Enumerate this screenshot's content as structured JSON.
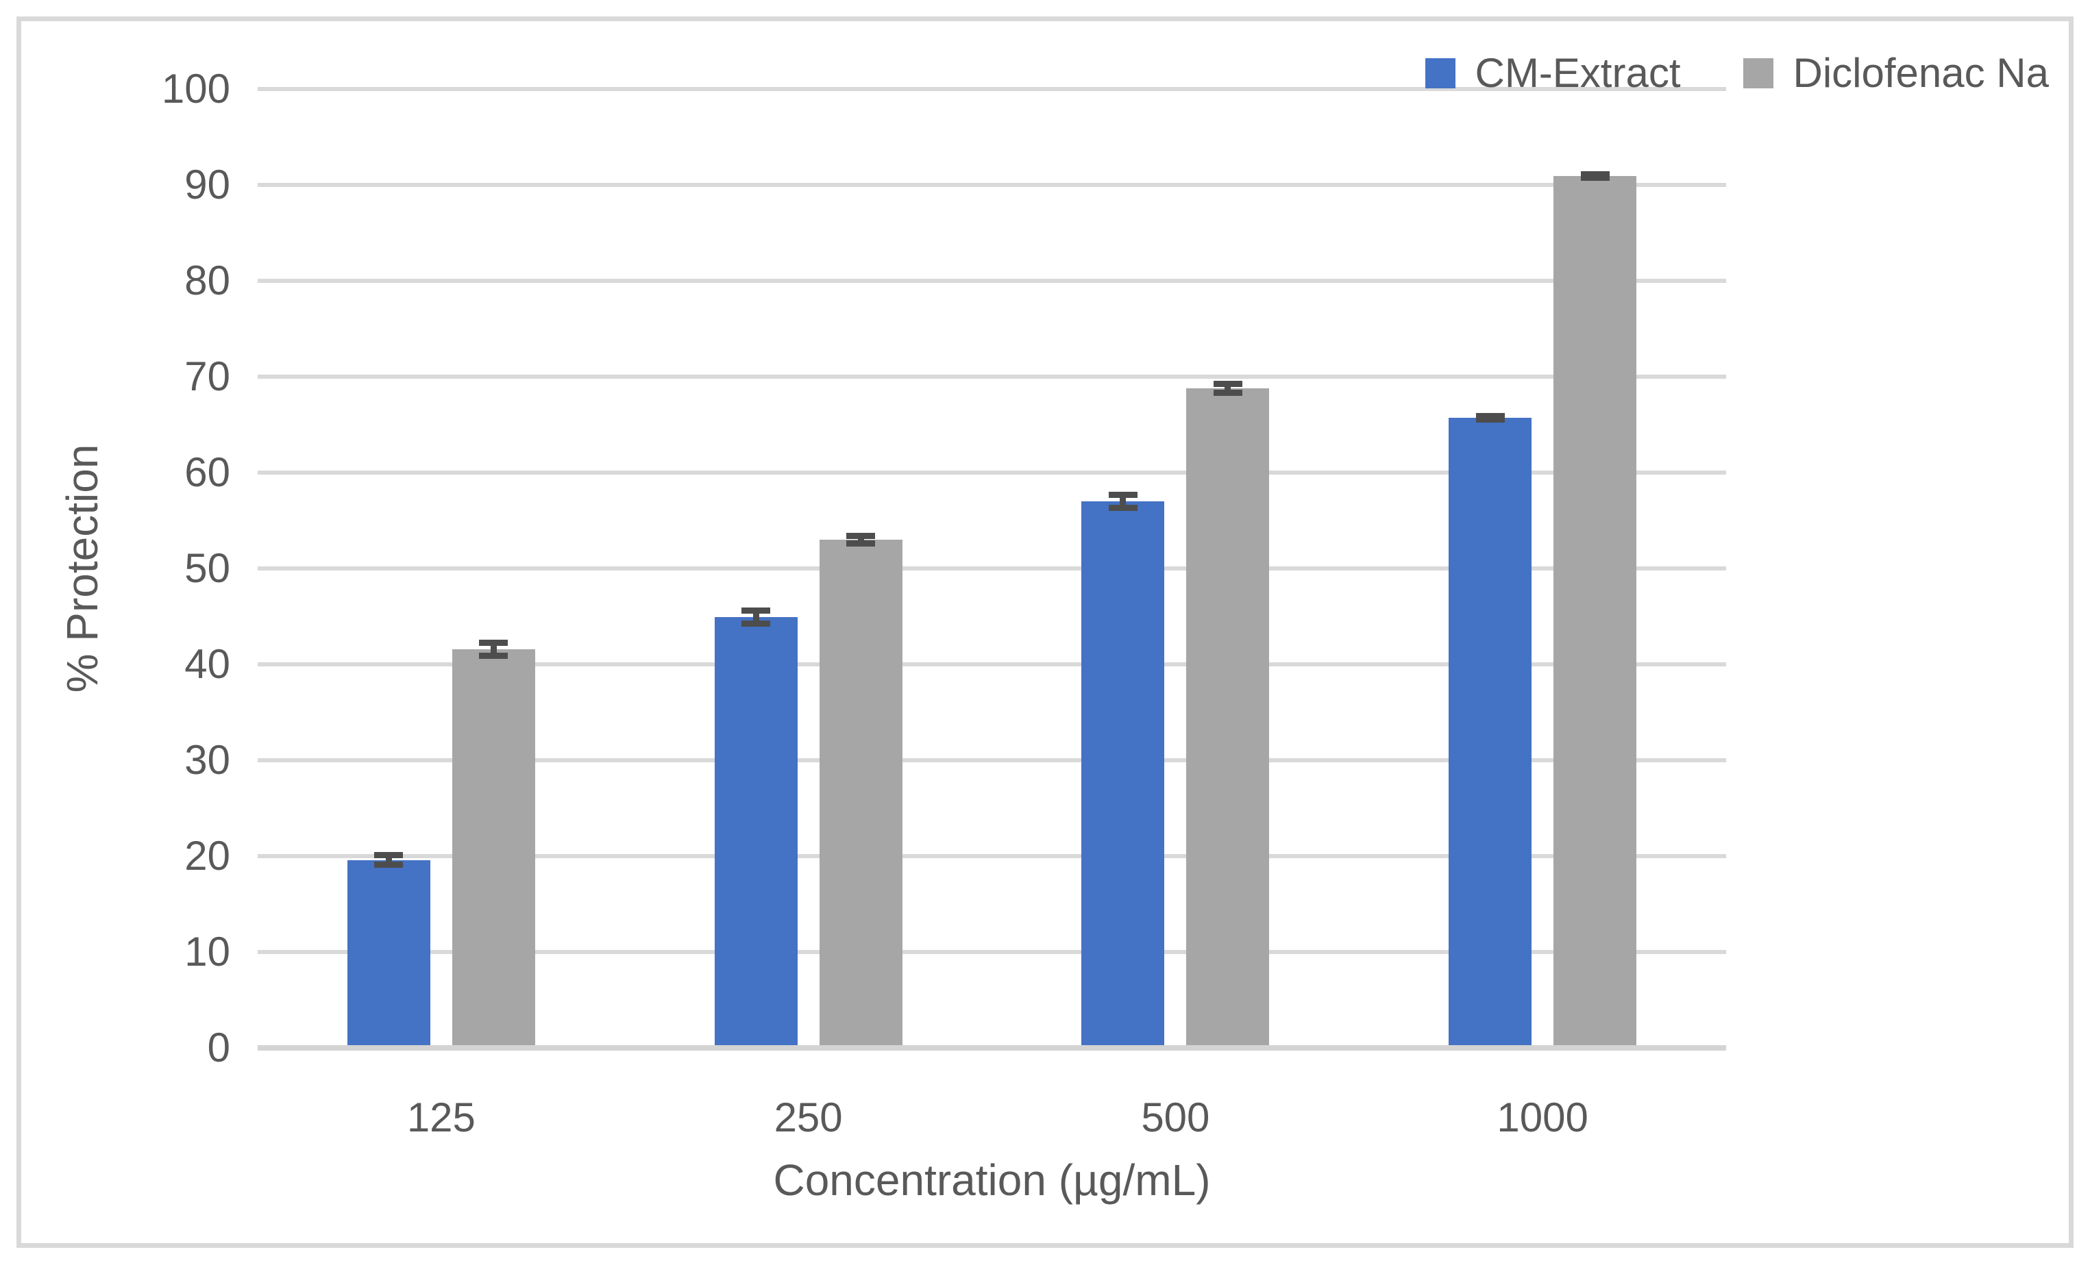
{
  "figure": {
    "background_color": "#ffffff",
    "border_color": "#d9d9d9"
  },
  "legend": {
    "position": "top-right",
    "items": [
      {
        "label": "CM-Extract",
        "color": "#4472c4"
      },
      {
        "label": "Diclofenac Na",
        "color": "#a6a6a6"
      }
    ]
  },
  "chart_data": {
    "type": "bar",
    "categories": [
      "125",
      "250",
      "500",
      "1000"
    ],
    "series": [
      {
        "name": "CM-Extract",
        "color": "#4472c4",
        "values": [
          19.6,
          44.9,
          57.0,
          65.7
        ],
        "errors": [
          0.8,
          1.0,
          1.0,
          0.5
        ]
      },
      {
        "name": "Diclofenac Na",
        "color": "#a6a6a6",
        "values": [
          41.6,
          53.0,
          68.8,
          90.9
        ],
        "errors": [
          1.0,
          0.7,
          0.8,
          0.5
        ]
      }
    ],
    "title": "",
    "xlabel": "Concentration (µg/mL)",
    "ylabel": "% Protection",
    "ylim": [
      0,
      100
    ],
    "yticks": [
      0,
      10,
      20,
      30,
      40,
      50,
      60,
      70,
      80,
      90,
      100
    ],
    "grid": true,
    "gridline_color": "#d9d9d9",
    "axis_line_color": "#d4d4d4",
    "error_bar_color": "#4d4d4d",
    "text_color": "#595959",
    "error_bars": true,
    "legend_position": "top-right"
  }
}
